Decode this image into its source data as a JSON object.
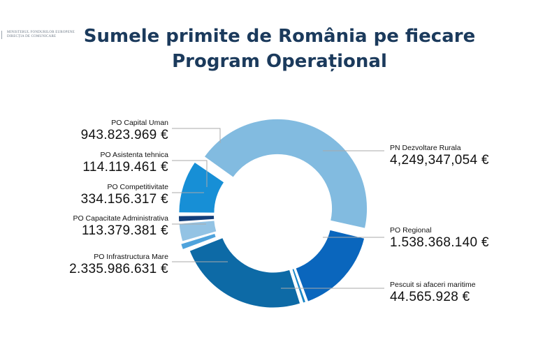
{
  "logo": {
    "line1": "MINISTERUL FONDURILOR EUROPENE",
    "line2": "DIRECȚIA DE COMUNICARE"
  },
  "header": {
    "title_line1": "Sumele primite de România pe fiecare",
    "title_line2": "Program Operațional"
  },
  "chart_data": {
    "type": "pie",
    "variant": "donut",
    "title": "Sumele primite de România pe fiecare Program Operațional",
    "currency": "€",
    "slices": [
      {
        "name": "PN Dezvoltare Rurala",
        "value": 4249347054,
        "label_value": "4,249,347,054 €",
        "color": "#82bbe0"
      },
      {
        "name": "PO Regional",
        "value": 1538368140,
        "label_value": "1.538.368.140 €",
        "color": "#0a66bd"
      },
      {
        "name": "Pescuit si afaceri maritime",
        "value": 44565928,
        "label_value": "44.565.928 €",
        "color": "#1a86c7"
      },
      {
        "name": "PO Infrastructura Mare",
        "value": 2335986631,
        "label_value": "2.335.986.631 €",
        "color": "#0d6aa6"
      },
      {
        "name": "PO Capacitate Administrativa",
        "value": 113379381,
        "label_value": "113.379.381 €",
        "color": "#4fa3dc"
      },
      {
        "name": "PO Competitivitate",
        "value": 334156317,
        "label_value": "334.156.317 €",
        "color": "#93c3e4"
      },
      {
        "name": "PO Asistenta tehnica",
        "value": 114119461,
        "label_value": "114.119.461  €",
        "color": "#123e7a"
      },
      {
        "name": "PO Capital Uman",
        "value": 943823969,
        "label_value": "943.823.969 €",
        "color": "#178fd6"
      }
    ],
    "legend": "none"
  }
}
